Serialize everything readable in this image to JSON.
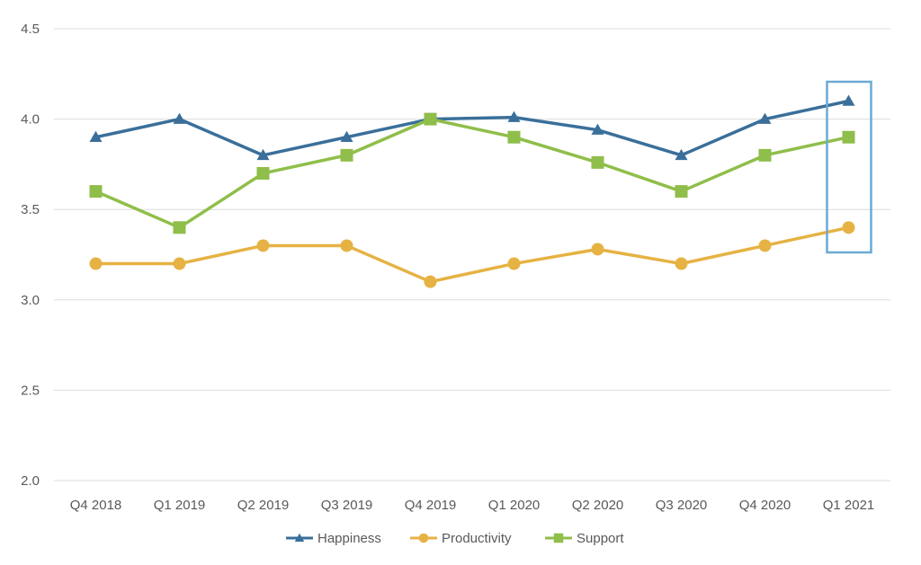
{
  "chart_data": {
    "type": "line",
    "categories": [
      "Q4 2018",
      "Q1 2019",
      "Q2 2019",
      "Q3 2019",
      "Q4 2019",
      "Q1 2020",
      "Q2 2020",
      "Q3 2020",
      "Q4 2020",
      "Q1 2021"
    ],
    "series": [
      {
        "name": "Happiness",
        "values": [
          3.9,
          4.0,
          3.8,
          3.9,
          4.0,
          4.01,
          3.94,
          3.8,
          4.0,
          4.1
        ],
        "color": "#3a6f9a",
        "marker": "triangle"
      },
      {
        "name": "Productivity",
        "values": [
          3.2,
          3.2,
          3.3,
          3.3,
          3.1,
          3.2,
          3.28,
          3.2,
          3.3,
          3.4
        ],
        "color": "#e6b243",
        "marker": "circle"
      },
      {
        "name": "Support",
        "values": [
          3.6,
          3.4,
          3.7,
          3.8,
          4.0,
          3.9,
          3.76,
          3.6,
          3.8,
          3.9
        ],
        "color": "#8fbe4a",
        "marker": "square"
      }
    ],
    "yticks": [
      "2.0",
      "2.5",
      "3.0",
      "3.5",
      "4.0",
      "4.5"
    ],
    "ylim": [
      2.0,
      4.5
    ],
    "grid": true,
    "legend_position": "bottom",
    "highlight": {
      "category": "Q1 2021",
      "color": "#6aaad6"
    },
    "title": "",
    "xlabel": "",
    "ylabel": ""
  }
}
